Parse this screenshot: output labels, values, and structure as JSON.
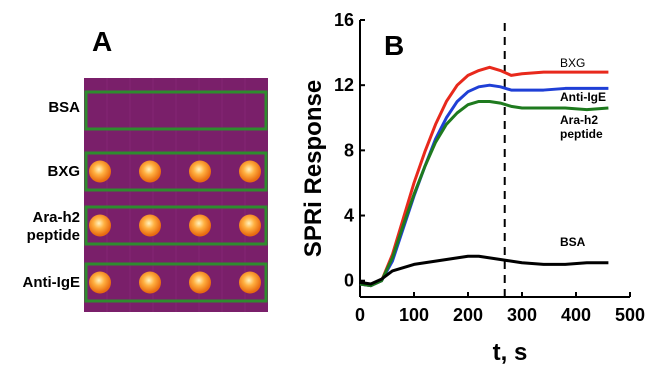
{
  "panel_a": {
    "label": "A",
    "rows": [
      {
        "label": "BSA",
        "spots": 0
      },
      {
        "label": "BXG",
        "spots": 4
      },
      {
        "label": "Ara-h2\npeptide",
        "spots": 4
      },
      {
        "label": "Anti-IgE",
        "spots": 4
      }
    ],
    "colors": {
      "background": "#7a1f6a",
      "frame": "#2e8b2e",
      "spot_core": "#fff2c0",
      "spot_edge": "#e86a10"
    }
  },
  "panel_b": {
    "label": "B"
  },
  "chart_data": {
    "type": "line",
    "xlabel": "t, s",
    "ylabel": "SPRi Response",
    "xlim": [
      0,
      500
    ],
    "ylim": [
      -1,
      16
    ],
    "xticks": [
      0,
      100,
      200,
      300,
      400,
      500
    ],
    "yticks": [
      0,
      4,
      8,
      12,
      16
    ],
    "grid": false,
    "vline_x": 268,
    "series": [
      {
        "name": "BXG",
        "color": "#e8291c",
        "x": [
          0,
          20,
          40,
          60,
          80,
          100,
          120,
          140,
          160,
          180,
          200,
          220,
          240,
          260,
          280,
          300,
          340,
          380,
          420,
          460
        ],
        "y": [
          -0.2,
          -0.3,
          0.0,
          1.6,
          3.8,
          6.0,
          7.9,
          9.6,
          11.0,
          12.0,
          12.6,
          12.9,
          13.1,
          12.9,
          12.6,
          12.7,
          12.8,
          12.8,
          12.8,
          12.8
        ]
      },
      {
        "name": "Anti-IgE",
        "color": "#1f3fd6",
        "x": [
          0,
          20,
          40,
          60,
          80,
          100,
          120,
          140,
          160,
          180,
          200,
          220,
          240,
          260,
          280,
          300,
          340,
          380,
          420,
          460
        ],
        "y": [
          -0.2,
          -0.3,
          0.0,
          1.2,
          3.2,
          5.2,
          7.0,
          8.7,
          10.0,
          11.0,
          11.6,
          11.9,
          12.0,
          11.9,
          11.7,
          11.7,
          11.7,
          11.8,
          11.8,
          11.8
        ]
      },
      {
        "name": "Ara-h2\npeptide",
        "color": "#1e7a1e",
        "x": [
          0,
          20,
          40,
          60,
          80,
          100,
          120,
          140,
          160,
          180,
          200,
          220,
          240,
          260,
          280,
          300,
          340,
          380,
          420,
          460
        ],
        "y": [
          -0.2,
          -0.3,
          0.0,
          1.4,
          3.4,
          5.3,
          7.0,
          8.5,
          9.6,
          10.3,
          10.8,
          11.0,
          11.0,
          10.9,
          10.7,
          10.6,
          10.6,
          10.6,
          10.5,
          10.6
        ]
      },
      {
        "name": "BSA",
        "color": "#000000",
        "x": [
          0,
          20,
          40,
          60,
          80,
          100,
          120,
          140,
          160,
          180,
          200,
          220,
          240,
          260,
          280,
          300,
          340,
          380,
          420,
          460
        ],
        "y": [
          -0.1,
          -0.2,
          0.1,
          0.6,
          0.8,
          1.0,
          1.1,
          1.2,
          1.3,
          1.4,
          1.5,
          1.5,
          1.4,
          1.3,
          1.2,
          1.1,
          1.0,
          1.0,
          1.1,
          1.1
        ]
      }
    ]
  }
}
